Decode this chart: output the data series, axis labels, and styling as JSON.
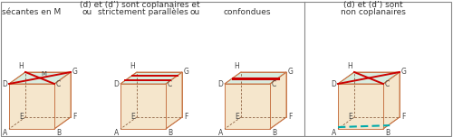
{
  "bg_color": "#f5e6cc",
  "top_face_color": "#d8ede0",
  "edge_color": "#c8784a",
  "dashed_color": "#8b6040",
  "red_line_color": "#cc0000",
  "teal_dashed_color": "#00aaaa",
  "border_color": "#888888",
  "text_color": "#333333",
  "label_color": "#444444",
  "title_coplanar": "(d) et (d’) sont coplanaires et",
  "title_noncoplanar_1": "(d) et (d’) sont",
  "title_noncoplanar_2": "non coplanaires",
  "label_0": "sécantes en M",
  "label_1": "strictement parallèles",
  "label_2": "confondues",
  "ou": "ou"
}
